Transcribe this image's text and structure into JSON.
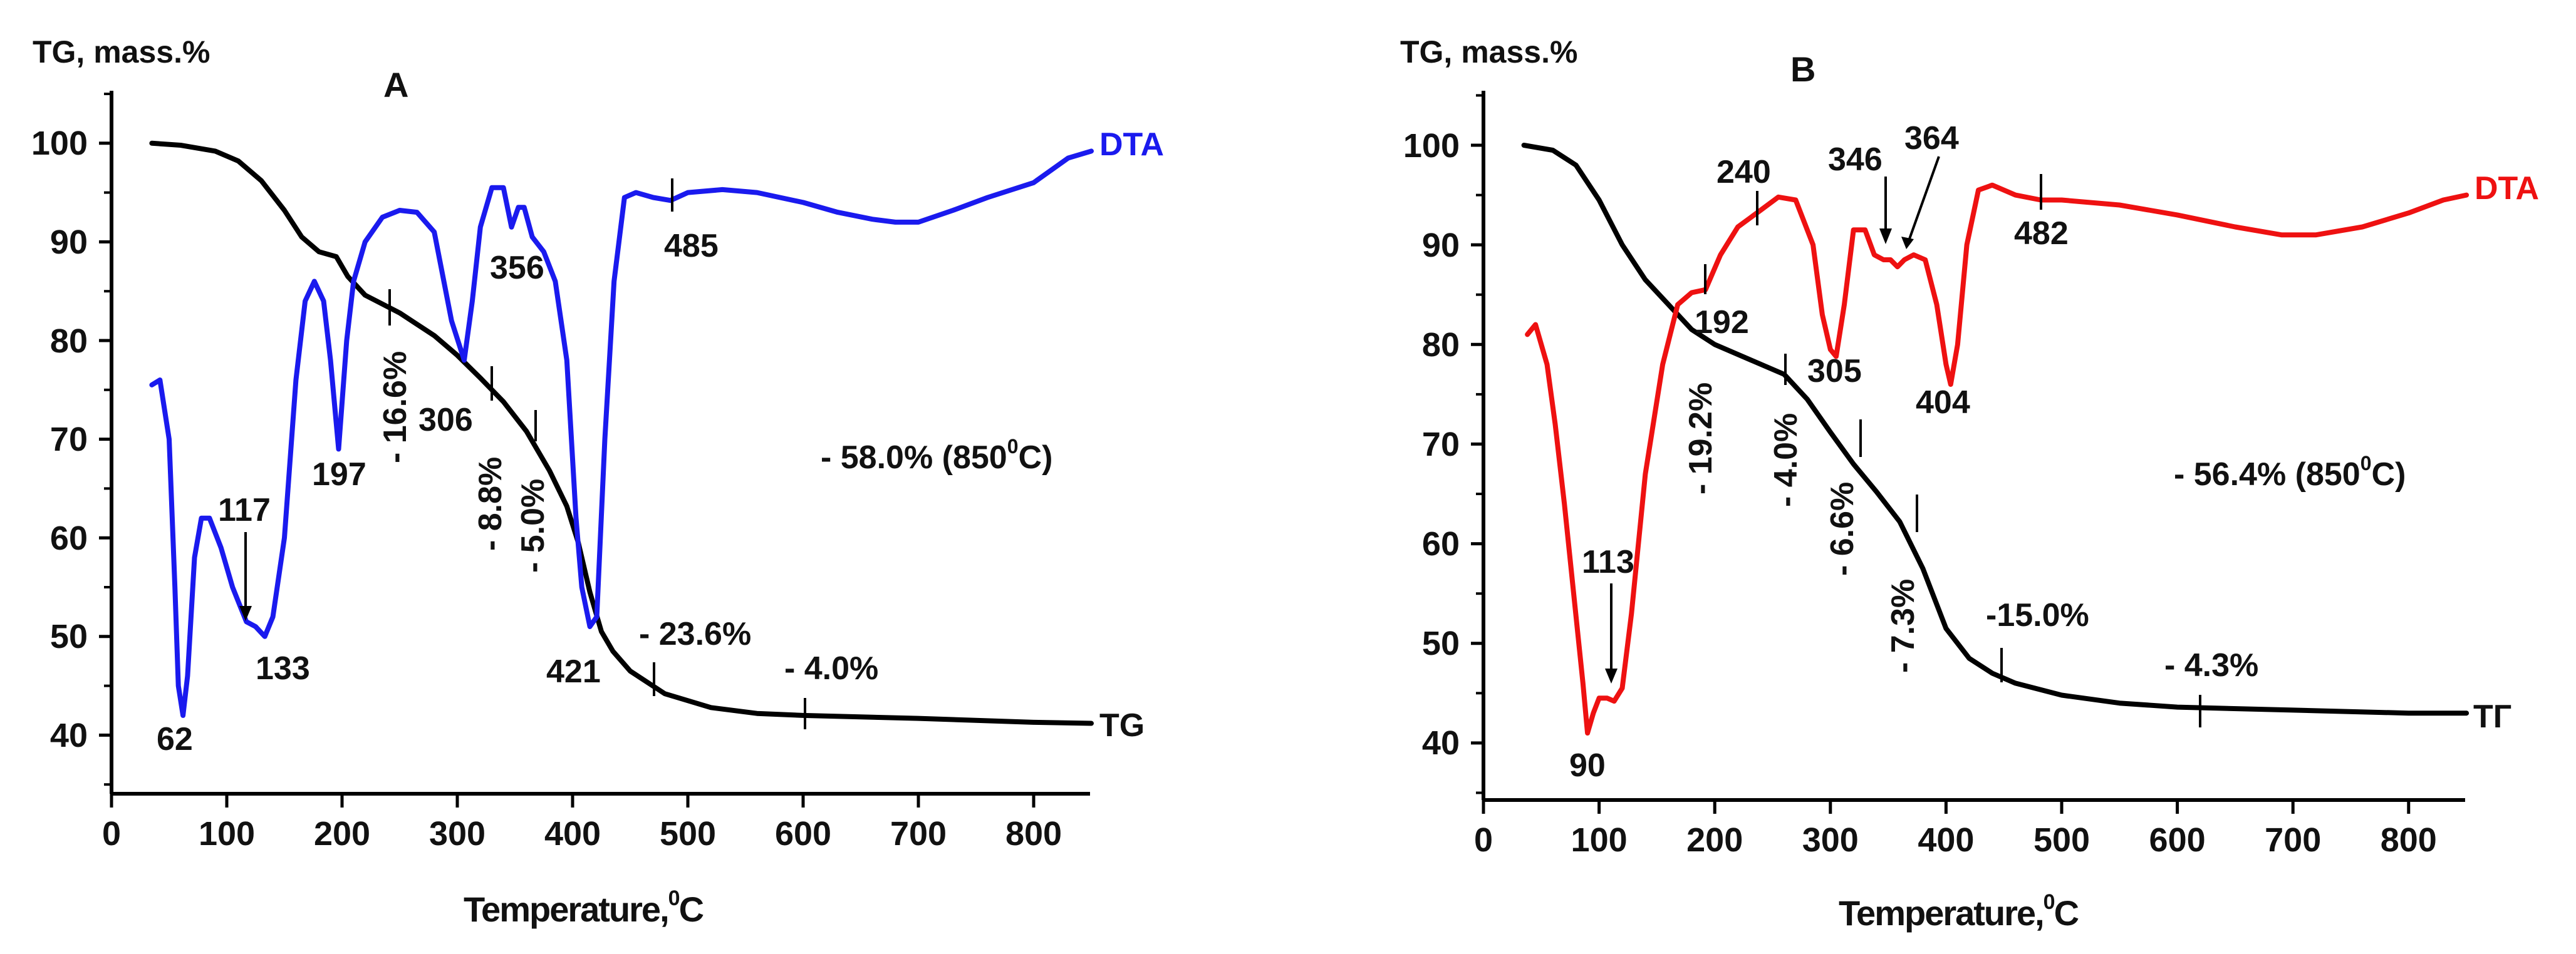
{
  "chart_data": [
    {
      "type": "line",
      "title": "A",
      "ylabel": "TG, mass.%",
      "xlabel_main": "Temperature,",
      "xlabel_sup": "0",
      "xlabel_end": "C",
      "xlim": [
        0,
        850
      ],
      "ylim": [
        35,
        105
      ],
      "xticks": [
        0,
        100,
        200,
        300,
        400,
        500,
        600,
        700,
        800
      ],
      "yticks": [
        40,
        50,
        60,
        70,
        80,
        90,
        100
      ],
      "series": [
        {
          "name": "TG",
          "color": "#000000",
          "x": [
            35,
            60,
            90,
            110,
            130,
            150,
            165,
            180,
            195,
            205,
            220,
            250,
            280,
            300,
            320,
            340,
            360,
            380,
            395,
            405,
            415,
            425,
            435,
            450,
            480,
            520,
            560,
            600,
            700,
            800,
            850
          ],
          "y": [
            100,
            99.8,
            99.2,
            98.2,
            96.2,
            93.2,
            90.5,
            89,
            88.5,
            86.5,
            84.6,
            82.8,
            80.5,
            78.5,
            76.2,
            73.8,
            70.8,
            66.8,
            63.2,
            59.5,
            54.5,
            50.5,
            48.5,
            46.5,
            44.2,
            42.8,
            42.2,
            42,
            41.7,
            41.3,
            41.2
          ]
        },
        {
          "name": "DTA",
          "color": "#1a1aee",
          "x": [
            35,
            42,
            50,
            55,
            58,
            62,
            66,
            72,
            78,
            85,
            95,
            105,
            117,
            125,
            133,
            140,
            150,
            160,
            168,
            176,
            184,
            190,
            197,
            204,
            210,
            220,
            235,
            250,
            265,
            280,
            295,
            306,
            313,
            320,
            330,
            340,
            347,
            353,
            358,
            365,
            375,
            385,
            395,
            403,
            408,
            415,
            421,
            428,
            436,
            445,
            455,
            470,
            485,
            500,
            530,
            560,
            600,
            630,
            660,
            680,
            700,
            730,
            760,
            800,
            830,
            850
          ],
          "y": [
            75.5,
            76,
            70,
            55,
            45,
            42,
            46,
            58,
            62,
            62,
            59,
            55,
            51.5,
            51,
            50,
            52,
            60,
            76,
            84,
            86,
            84,
            78,
            69,
            80,
            86,
            90,
            92.5,
            93.2,
            93,
            91,
            82,
            78,
            84,
            91.5,
            95.5,
            95.5,
            91.5,
            93.5,
            93.5,
            90.5,
            89,
            86,
            78,
            62,
            55,
            51,
            52,
            70,
            86,
            94.5,
            95,
            94.5,
            94.2,
            95,
            95.3,
            95,
            94,
            93,
            92.3,
            92,
            92,
            93.2,
            94.5,
            96,
            98.5,
            99.2
          ]
        }
      ],
      "series_labels": {
        "tg": "TG",
        "dta": "DTA"
      },
      "annotations": [
        "62",
        "117",
        "133",
        "197",
        "306",
        "356",
        "421",
        "485"
      ],
      "mass_losses": [
        "- 16.6%",
        "- 8.8%",
        "- 5.0%",
        "- 23.6%",
        "- 4.0%"
      ],
      "total_loss": "- 58.0% (850",
      "total_loss_sup": "0",
      "total_loss_end": "C)"
    },
    {
      "type": "line",
      "title": "B",
      "ylabel": "TG, mass.%",
      "xlabel_main": "Temperature,",
      "xlabel_sup": "0",
      "xlabel_end": "C",
      "xlim": [
        0,
        850
      ],
      "ylim": [
        35,
        105
      ],
      "xticks": [
        0,
        100,
        200,
        300,
        400,
        500,
        600,
        700,
        800
      ],
      "yticks": [
        40,
        50,
        60,
        70,
        80,
        90,
        100
      ],
      "series": [
        {
          "name": "TG",
          "color": "#000000",
          "x": [
            35,
            60,
            80,
            100,
            120,
            140,
            160,
            180,
            200,
            230,
            260,
            280,
            300,
            320,
            340,
            360,
            380,
            400,
            420,
            440,
            460,
            500,
            550,
            600,
            700,
            800,
            850
          ],
          "y": [
            100,
            99.5,
            98,
            94.5,
            90,
            86.5,
            84,
            81.5,
            80,
            78.5,
            77,
            74.5,
            71.2,
            68,
            65.2,
            62.2,
            57.5,
            51.5,
            48.5,
            47,
            46,
            44.8,
            44,
            43.6,
            43.3,
            43,
            43
          ]
        },
        {
          "name": "DTA",
          "color": "#ee1111",
          "x": [
            38,
            45,
            55,
            62,
            70,
            78,
            86,
            90,
            95,
            100,
            107,
            113,
            120,
            128,
            140,
            155,
            168,
            180,
            192,
            205,
            220,
            240,
            255,
            270,
            285,
            293,
            300,
            305,
            312,
            320,
            330,
            338,
            346,
            352,
            358,
            364,
            372,
            382,
            392,
            400,
            404,
            410,
            418,
            428,
            440,
            460,
            482,
            500,
            550,
            600,
            650,
            690,
            720,
            760,
            800,
            830,
            850
          ],
          "y": [
            81,
            82,
            78,
            72,
            64,
            55,
            46,
            41,
            43,
            44.5,
            44.5,
            44.2,
            45.5,
            53,
            67,
            78,
            84,
            85.2,
            85.5,
            89,
            91.8,
            93.5,
            94.8,
            94.5,
            90,
            83,
            79.5,
            78.8,
            84,
            91.5,
            91.5,
            89,
            88.5,
            88.5,
            87.8,
            88.5,
            89,
            88.5,
            84,
            78,
            76,
            80,
            90,
            95.5,
            96,
            95,
            94.5,
            94.5,
            94,
            93,
            91.8,
            91,
            91,
            91.8,
            93.2,
            94.5,
            95
          ]
        }
      ],
      "series_labels": {
        "tg": "ТГ",
        "dta": "DTA"
      },
      "annotations": [
        "90",
        "113",
        "192",
        "240",
        "305",
        "346",
        "364",
        "404",
        "482"
      ],
      "mass_losses": [
        "- 19.2%",
        "- 4.0%",
        "- 6.6%",
        "- 7.3%",
        "-15.0%",
        "- 4.3%"
      ],
      "total_loss": "- 56.4% (850",
      "total_loss_sup": "0",
      "total_loss_end": "C)"
    }
  ]
}
